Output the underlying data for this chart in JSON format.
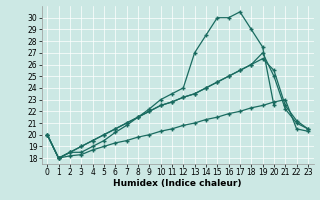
{
  "xlabel": "Humidex (Indice chaleur)",
  "bg_color": "#cce8e4",
  "line_color": "#1a6b60",
  "xlim": [
    -0.5,
    23.5
  ],
  "ylim": [
    17.5,
    31.0
  ],
  "xticks": [
    0,
    1,
    2,
    3,
    4,
    5,
    6,
    7,
    8,
    9,
    10,
    11,
    12,
    13,
    14,
    15,
    16,
    17,
    18,
    19,
    20,
    21,
    22,
    23
  ],
  "yticks": [
    18,
    19,
    20,
    21,
    22,
    23,
    24,
    25,
    26,
    27,
    28,
    29,
    30
  ],
  "line1_x": [
    0,
    1,
    2,
    3,
    4,
    5,
    6,
    7,
    8,
    9,
    10,
    11,
    12,
    13,
    14,
    15,
    16,
    17,
    18,
    19,
    20
  ],
  "line1_y": [
    20,
    18,
    18.5,
    18.5,
    19.0,
    19.5,
    20.2,
    20.8,
    21.5,
    22.2,
    23.0,
    23.5,
    24.0,
    27.0,
    28.5,
    30.0,
    30.0,
    30.5,
    29.0,
    27.5,
    22.5
  ],
  "line2_x": [
    0,
    1,
    2,
    3,
    4,
    5,
    6,
    7,
    8,
    9,
    10,
    11,
    12,
    13,
    14,
    15,
    16,
    17,
    18,
    19,
    20,
    21,
    22,
    23
  ],
  "line2_y": [
    20,
    18,
    18.5,
    19.0,
    19.5,
    20.0,
    20.5,
    21.0,
    21.5,
    22.0,
    22.5,
    22.8,
    23.2,
    23.5,
    24.0,
    24.5,
    25.0,
    25.5,
    26.0,
    27.0,
    25.0,
    22.2,
    21.0,
    20.5
  ],
  "line3_x": [
    0,
    1,
    2,
    3,
    4,
    5,
    6,
    7,
    8,
    9,
    10,
    11,
    12,
    13,
    14,
    15,
    16,
    17,
    18,
    19,
    20,
    21,
    22,
    23
  ],
  "line3_y": [
    20,
    18,
    18.5,
    19.0,
    19.5,
    20.0,
    20.5,
    21.0,
    21.5,
    22.0,
    22.5,
    22.8,
    23.2,
    23.5,
    24.0,
    24.5,
    25.0,
    25.5,
    26.0,
    26.5,
    25.5,
    22.5,
    21.2,
    20.5
  ],
  "line4_x": [
    0,
    1,
    2,
    3,
    4,
    5,
    6,
    7,
    8,
    9,
    10,
    11,
    12,
    13,
    14,
    15,
    16,
    17,
    18,
    19,
    20,
    21,
    22,
    23
  ],
  "line4_y": [
    20,
    18,
    18.2,
    18.3,
    18.7,
    19.0,
    19.3,
    19.5,
    19.8,
    20.0,
    20.3,
    20.5,
    20.8,
    21.0,
    21.3,
    21.5,
    21.8,
    22.0,
    22.3,
    22.5,
    22.8,
    23.0,
    20.5,
    20.3
  ],
  "marker": "+",
  "markersize": 3,
  "linewidth": 0.9,
  "tick_labelsize": 5.5,
  "xlabel_fontsize": 6.5
}
